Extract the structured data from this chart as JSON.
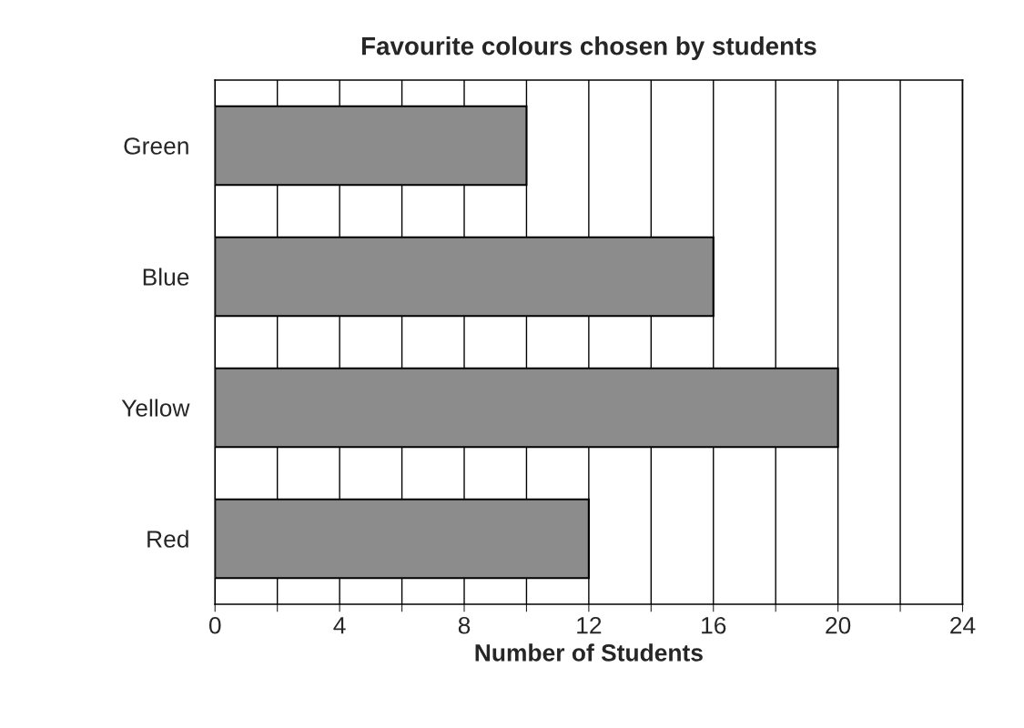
{
  "chart_data": {
    "type": "bar",
    "orientation": "horizontal",
    "title": "Favourite colours chosen by students",
    "xlabel": "Number of Students",
    "categories": [
      "Green",
      "Blue",
      "Yellow",
      "Red"
    ],
    "values": [
      10,
      16,
      20,
      12
    ],
    "color": "#8c8c8c",
    "xlim": [
      0,
      24
    ],
    "xticks": [
      0,
      {
        "value": 2,
        "label": null
      },
      4,
      {
        "value": 6,
        "label": null
      },
      8,
      {
        "value": 10,
        "label": null
      },
      12,
      {
        "value": 14,
        "label": null
      },
      16,
      {
        "value": 18,
        "label": null
      },
      20,
      {
        "value": 22,
        "label": null
      },
      24
    ],
    "grid": "x"
  }
}
